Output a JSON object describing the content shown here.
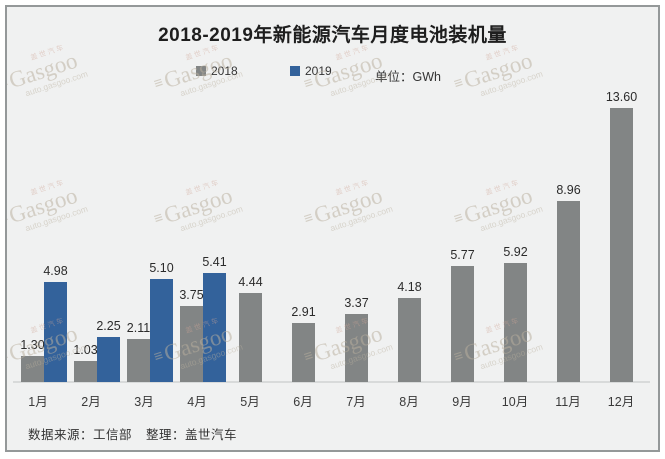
{
  "title": "2018-2019年新能源汽车月度电池装机量",
  "legend": {
    "items": [
      {
        "label": "2018",
        "color": "#828585"
      },
      {
        "label": "2019",
        "color": "#33629b"
      }
    ],
    "unit_label": "单位：GWh"
  },
  "chart_data": {
    "type": "bar",
    "title": "2018-2019年新能源汽车月度电池装机量",
    "unit": "GWh",
    "categories": [
      "1月",
      "2月",
      "3月",
      "4月",
      "5月",
      "6月",
      "7月",
      "8月",
      "9月",
      "10月",
      "11月",
      "12月"
    ],
    "series": [
      {
        "name": "2018",
        "color": "#828585",
        "values": [
          1.3,
          1.03,
          2.11,
          3.75,
          4.44,
          2.91,
          3.37,
          4.18,
          5.77,
          5.92,
          8.96,
          13.6
        ]
      },
      {
        "name": "2019",
        "color": "#33629b",
        "values": [
          4.98,
          2.25,
          5.1,
          5.41,
          null,
          null,
          null,
          null,
          null,
          null,
          null,
          null
        ]
      }
    ],
    "ylim": [
      0,
      14.5
    ],
    "grid": false,
    "data_labels": true,
    "legend_position": "top"
  },
  "footer": {
    "source": "数据来源：工信部",
    "compiler": "整理：盖世汽车"
  },
  "watermark": {
    "cn": "盖世汽车",
    "logo": "≡",
    "brand": "Gasgoo",
    "url": "auto.gasgoo.com"
  },
  "colors": {
    "panel_bg": "#f0f1f1",
    "panel_border": "#949899",
    "bar_2018": "#828585",
    "bar_2019": "#33629b",
    "axis_line": "#d8dada",
    "text": "#2b2b2b"
  }
}
